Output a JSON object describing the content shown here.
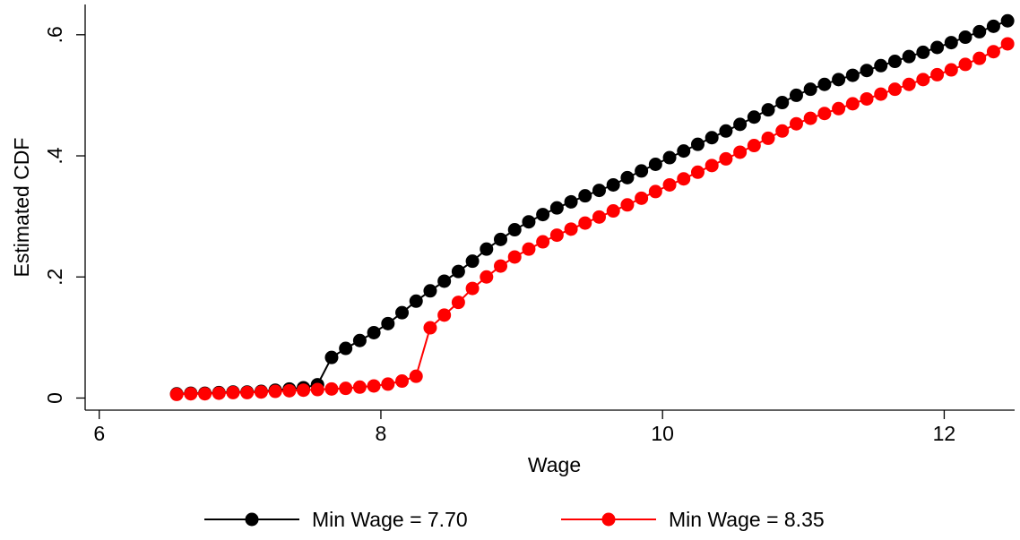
{
  "chart_data": {
    "type": "line",
    "title": "",
    "xlabel": "Wage",
    "ylabel": "Estimated CDF",
    "xlim": [
      5.9,
      12.5
    ],
    "ylim": [
      -0.02,
      0.65
    ],
    "xticks": [
      6,
      8,
      10,
      12
    ],
    "xtick_labels": [
      "6",
      "8",
      "10",
      "12"
    ],
    "yticks": [
      0,
      0.2,
      0.4,
      0.6
    ],
    "ytick_labels": [
      "0",
      ".2",
      ".4",
      ".6"
    ],
    "grid": false,
    "legend_position": "bottom",
    "markers": "filled-circle",
    "series": [
      {
        "name": "Min Wage = 7.70",
        "color": "#000000",
        "x": [
          6.55,
          6.65,
          6.75,
          6.85,
          6.95,
          7.05,
          7.15,
          7.25,
          7.35,
          7.45,
          7.55,
          7.65,
          7.75,
          7.85,
          7.95,
          8.05,
          8.15,
          8.25,
          8.35,
          8.45,
          8.55,
          8.65,
          8.75,
          8.85,
          8.95,
          9.05,
          9.15,
          9.25,
          9.35,
          9.45,
          9.55,
          9.65,
          9.75,
          9.85,
          9.95,
          10.05,
          10.15,
          10.25,
          10.35,
          10.45,
          10.55,
          10.65,
          10.75,
          10.85,
          10.95,
          11.05,
          11.15,
          11.25,
          11.35,
          11.45,
          11.55,
          11.65,
          11.75,
          11.85,
          11.95,
          12.05,
          12.15,
          12.25,
          12.35,
          12.45
        ],
        "y": [
          0.007,
          0.008,
          0.008,
          0.009,
          0.01,
          0.01,
          0.011,
          0.013,
          0.015,
          0.017,
          0.022,
          0.067,
          0.082,
          0.095,
          0.108,
          0.123,
          0.141,
          0.16,
          0.177,
          0.193,
          0.209,
          0.226,
          0.246,
          0.262,
          0.278,
          0.291,
          0.303,
          0.314,
          0.324,
          0.334,
          0.343,
          0.352,
          0.364,
          0.375,
          0.386,
          0.397,
          0.408,
          0.419,
          0.43,
          0.441,
          0.452,
          0.464,
          0.476,
          0.488,
          0.5,
          0.51,
          0.518,
          0.526,
          0.533,
          0.541,
          0.549,
          0.556,
          0.564,
          0.571,
          0.579,
          0.587,
          0.596,
          0.605,
          0.614,
          0.623
        ]
      },
      {
        "name": "Min Wage = 8.35",
        "color": "#ff0000",
        "x": [
          6.55,
          6.65,
          6.75,
          6.85,
          6.95,
          7.05,
          7.15,
          7.25,
          7.35,
          7.45,
          7.55,
          7.65,
          7.75,
          7.85,
          7.95,
          8.05,
          8.15,
          8.25,
          8.35,
          8.45,
          8.55,
          8.65,
          8.75,
          8.85,
          8.95,
          9.05,
          9.15,
          9.25,
          9.35,
          9.45,
          9.55,
          9.65,
          9.75,
          9.85,
          9.95,
          10.05,
          10.15,
          10.25,
          10.35,
          10.45,
          10.55,
          10.65,
          10.75,
          10.85,
          10.95,
          11.05,
          11.15,
          11.25,
          11.35,
          11.45,
          11.55,
          11.65,
          11.75,
          11.85,
          11.95,
          12.05,
          12.15,
          12.25,
          12.35,
          12.45
        ],
        "y": [
          0.006,
          0.007,
          0.007,
          0.008,
          0.009,
          0.009,
          0.01,
          0.011,
          0.012,
          0.013,
          0.014,
          0.015,
          0.016,
          0.018,
          0.02,
          0.023,
          0.028,
          0.036,
          0.116,
          0.137,
          0.158,
          0.181,
          0.2,
          0.218,
          0.233,
          0.246,
          0.258,
          0.269,
          0.279,
          0.289,
          0.299,
          0.309,
          0.319,
          0.33,
          0.341,
          0.352,
          0.362,
          0.373,
          0.384,
          0.395,
          0.406,
          0.417,
          0.429,
          0.441,
          0.453,
          0.462,
          0.47,
          0.478,
          0.486,
          0.494,
          0.502,
          0.51,
          0.518,
          0.526,
          0.534,
          0.542,
          0.551,
          0.561,
          0.572,
          0.585
        ]
      }
    ]
  }
}
